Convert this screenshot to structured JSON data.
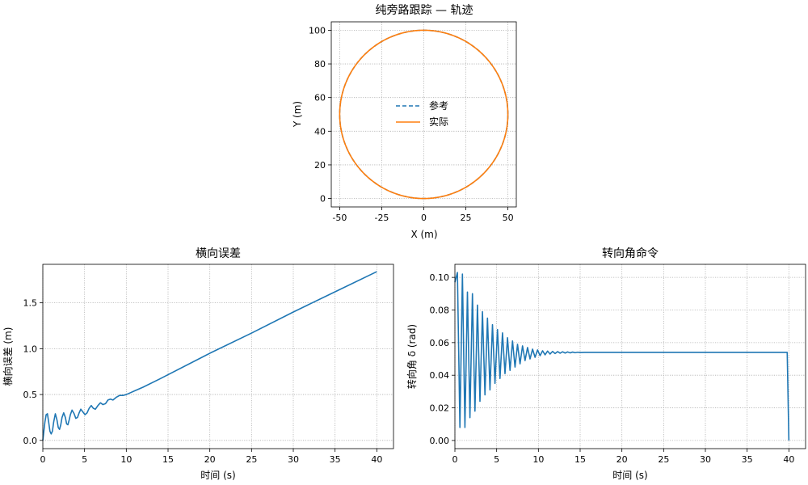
{
  "colors": {
    "reference": "#1f77b4",
    "actual": "#ff7f0e",
    "line": "#1f77b4"
  },
  "chart_data": [
    {
      "type": "line",
      "title": "纯旁路跟踪 — 轨迹",
      "xlabel": "X (m)",
      "ylabel": "Y (m)",
      "xlim": [
        -55,
        55
      ],
      "ylim": [
        -5,
        105
      ],
      "xticks": [
        -50,
        -25,
        0,
        25,
        50
      ],
      "yticks": [
        0,
        20,
        40,
        60,
        80,
        100
      ],
      "grid": true,
      "legend": "center",
      "series": [
        {
          "name": "参考",
          "style": "dashed",
          "shape": "circle",
          "center": [
            0,
            50
          ],
          "radius": 50
        },
        {
          "name": "实际",
          "style": "solid",
          "shape": "circle",
          "center": [
            0,
            50
          ],
          "radius": 50
        }
      ]
    },
    {
      "type": "line",
      "title": "横向误差",
      "xlabel": "时间 (s)",
      "ylabel": "横向误差 (m)",
      "xlim": [
        0,
        42
      ],
      "ylim": [
        -0.09,
        1.92
      ],
      "xticks": [
        0,
        5,
        10,
        15,
        20,
        25,
        30,
        35,
        40
      ],
      "yticks": [
        0.0,
        0.5,
        1.0,
        1.5
      ],
      "grid": true,
      "series": [
        {
          "name": "",
          "x": [
            0,
            0.1,
            0.25,
            0.4,
            0.55,
            0.7,
            0.85,
            1.0,
            1.15,
            1.3,
            1.5,
            1.7,
            1.85,
            2.0,
            2.15,
            2.3,
            2.5,
            2.7,
            2.85,
            3.0,
            3.15,
            3.3,
            3.5,
            3.75,
            3.95,
            4.15,
            4.35,
            4.55,
            4.8,
            5.05,
            5.3,
            5.55,
            5.8,
            6.05,
            6.3,
            6.6,
            6.9,
            7.2,
            7.5,
            7.8,
            8.1,
            8.4,
            8.8,
            9.2,
            9.6,
            10.0,
            10.5,
            11.0,
            12.0,
            14.0,
            20.0,
            25.0,
            30.0,
            35.0,
            40.0
          ],
          "y": [
            0.0,
            0.08,
            0.2,
            0.28,
            0.29,
            0.2,
            0.1,
            0.07,
            0.1,
            0.2,
            0.29,
            0.22,
            0.14,
            0.12,
            0.17,
            0.25,
            0.3,
            0.25,
            0.18,
            0.17,
            0.22,
            0.28,
            0.33,
            0.29,
            0.24,
            0.25,
            0.3,
            0.34,
            0.31,
            0.28,
            0.3,
            0.35,
            0.38,
            0.35,
            0.34,
            0.38,
            0.41,
            0.39,
            0.4,
            0.44,
            0.45,
            0.44,
            0.47,
            0.49,
            0.49,
            0.5,
            0.52,
            0.54,
            0.58,
            0.67,
            0.95,
            1.17,
            1.4,
            1.62,
            1.84
          ]
        }
      ]
    },
    {
      "type": "line",
      "title": "转向角命令",
      "xlabel": "时间 (s)",
      "ylabel": "转向角 δ (rad)",
      "xlim": [
        0,
        42
      ],
      "ylim": [
        -0.005,
        0.108
      ],
      "xticks": [
        0,
        5,
        10,
        15,
        20,
        25,
        30,
        35,
        40
      ],
      "yticks": [
        0.0,
        0.02,
        0.04,
        0.06,
        0.08,
        0.1
      ],
      "grid": true,
      "series": [
        {
          "name": "",
          "x": [
            0,
            0.3,
            0.6,
            0.9,
            1.2,
            1.5,
            1.8,
            2.1,
            2.4,
            2.7,
            3.0,
            3.3,
            3.6,
            3.9,
            4.2,
            4.5,
            4.8,
            5.1,
            5.4,
            5.7,
            6.0,
            6.3,
            6.6,
            6.9,
            7.2,
            7.5,
            7.8,
            8.1,
            8.4,
            8.7,
            9.0,
            9.3,
            9.6,
            9.9,
            10.2,
            10.5,
            10.8,
            11.1,
            11.4,
            11.7,
            12.0,
            12.3,
            12.6,
            12.9,
            13.2,
            13.5,
            13.8,
            14.1,
            14.4,
            14.7,
            15.0,
            15.5,
            16.0,
            16.5,
            17.0,
            18.0,
            20.0,
            25.0,
            30.0,
            35.0,
            39.8,
            40.0
          ],
          "y": [
            0.097,
            0.103,
            0.008,
            0.102,
            0.008,
            0.091,
            0.014,
            0.09,
            0.018,
            0.083,
            0.024,
            0.079,
            0.028,
            0.075,
            0.031,
            0.071,
            0.035,
            0.068,
            0.038,
            0.066,
            0.041,
            0.063,
            0.043,
            0.061,
            0.045,
            0.059,
            0.047,
            0.058,
            0.049,
            0.057,
            0.05,
            0.056,
            0.051,
            0.0555,
            0.052,
            0.055,
            0.0525,
            0.0548,
            0.053,
            0.0546,
            0.0533,
            0.0545,
            0.0535,
            0.0544,
            0.0536,
            0.0543,
            0.0537,
            0.0542,
            0.0538,
            0.0541,
            0.0539,
            0.054,
            0.054,
            0.054,
            0.054,
            0.054,
            0.054,
            0.054,
            0.054,
            0.054,
            0.054,
            0.0
          ]
        }
      ]
    }
  ]
}
